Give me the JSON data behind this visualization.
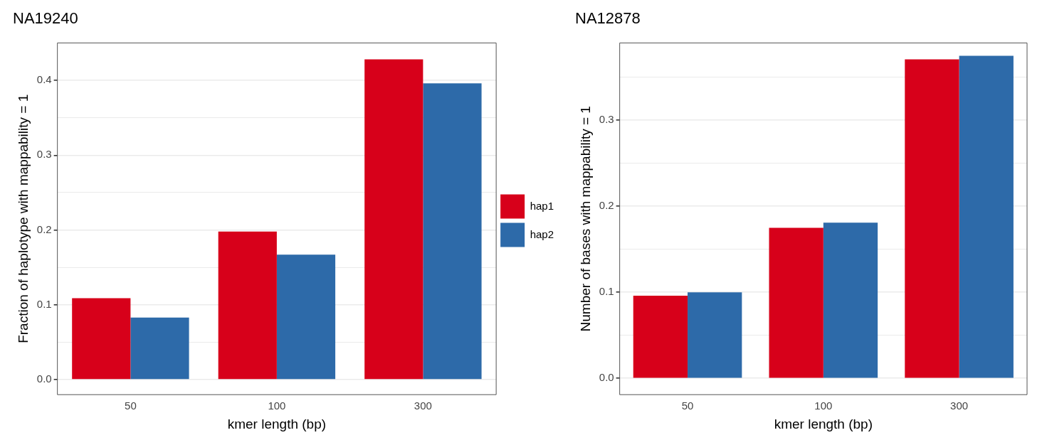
{
  "chart_data": [
    {
      "type": "bar",
      "title": "NA19240",
      "xlabel": "kmer length (bp)",
      "ylabel": "Fraction of haplotype with mappability = 1",
      "categories": [
        "50",
        "100",
        "300"
      ],
      "series": [
        {
          "name": "hap1",
          "color": "#d7001a",
          "values": [
            0.109,
            0.198,
            0.428
          ]
        },
        {
          "name": "hap2",
          "color": "#2d6aa9",
          "values": [
            0.083,
            0.167,
            0.396
          ]
        }
      ],
      "ylim": [
        -0.02,
        0.45
      ],
      "yticks": [
        {
          "value": 0,
          "label": "0.0"
        },
        {
          "value": 0.05,
          "label": null
        },
        {
          "value": 0.1,
          "label": "0.1"
        },
        {
          "value": 0.15,
          "label": null
        },
        {
          "value": 0.2,
          "label": "0.2"
        },
        {
          "value": 0.25,
          "label": null
        },
        {
          "value": 0.3,
          "label": "0.3"
        },
        {
          "value": 0.35,
          "label": null
        },
        {
          "value": 0.4,
          "label": "0.4"
        }
      ],
      "grid": "y",
      "legend": "right"
    },
    {
      "type": "bar",
      "title": "NA12878",
      "xlabel": "kmer length (bp)",
      "ylabel": "Number of bases with mappability = 1",
      "categories": [
        "50",
        "100",
        "300"
      ],
      "series": [
        {
          "color": "#d7001a",
          "values": [
            0.096,
            0.175,
            0.371
          ]
        },
        {
          "color": "#2d6aa9",
          "values": [
            0.1,
            0.181,
            0.375
          ]
        }
      ],
      "ylim": [
        -0.019,
        0.39
      ],
      "yticks": [
        {
          "value": 0,
          "label": "0.0"
        },
        {
          "value": 0.05,
          "label": null
        },
        {
          "value": 0.1,
          "label": "0.1"
        },
        {
          "value": 0.15,
          "label": null
        },
        {
          "value": 0.2,
          "label": "0.2"
        },
        {
          "value": 0.25,
          "label": null
        },
        {
          "value": 0.3,
          "label": "0.3"
        },
        {
          "value": 0.35,
          "label": null
        }
      ],
      "grid": "y",
      "legend": false
    }
  ]
}
